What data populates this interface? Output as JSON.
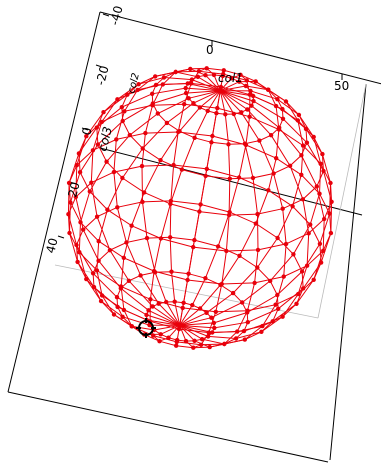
{
  "chart_data": {
    "type": "scatter",
    "subtype": "3d-wireframe-sphere",
    "title": "",
    "axes": {
      "x": {
        "label": "col1",
        "ticks": [
          "0",
          "50"
        ]
      },
      "y": {
        "label": "col2",
        "ticks": [
          "-40",
          "-20",
          "0",
          "20",
          "40"
        ]
      },
      "z": {
        "label": "col3",
        "ticks": []
      }
    },
    "series": [
      {
        "description": "points on a sphere surface joined by latitude and longitude lines",
        "color": "#e8000b",
        "latitude_rings": 12,
        "points_per_ring": 24
      }
    ],
    "highlighted_point": "open black target marker near the lower-left of the sphere",
    "grid": false,
    "legend": "none"
  }
}
